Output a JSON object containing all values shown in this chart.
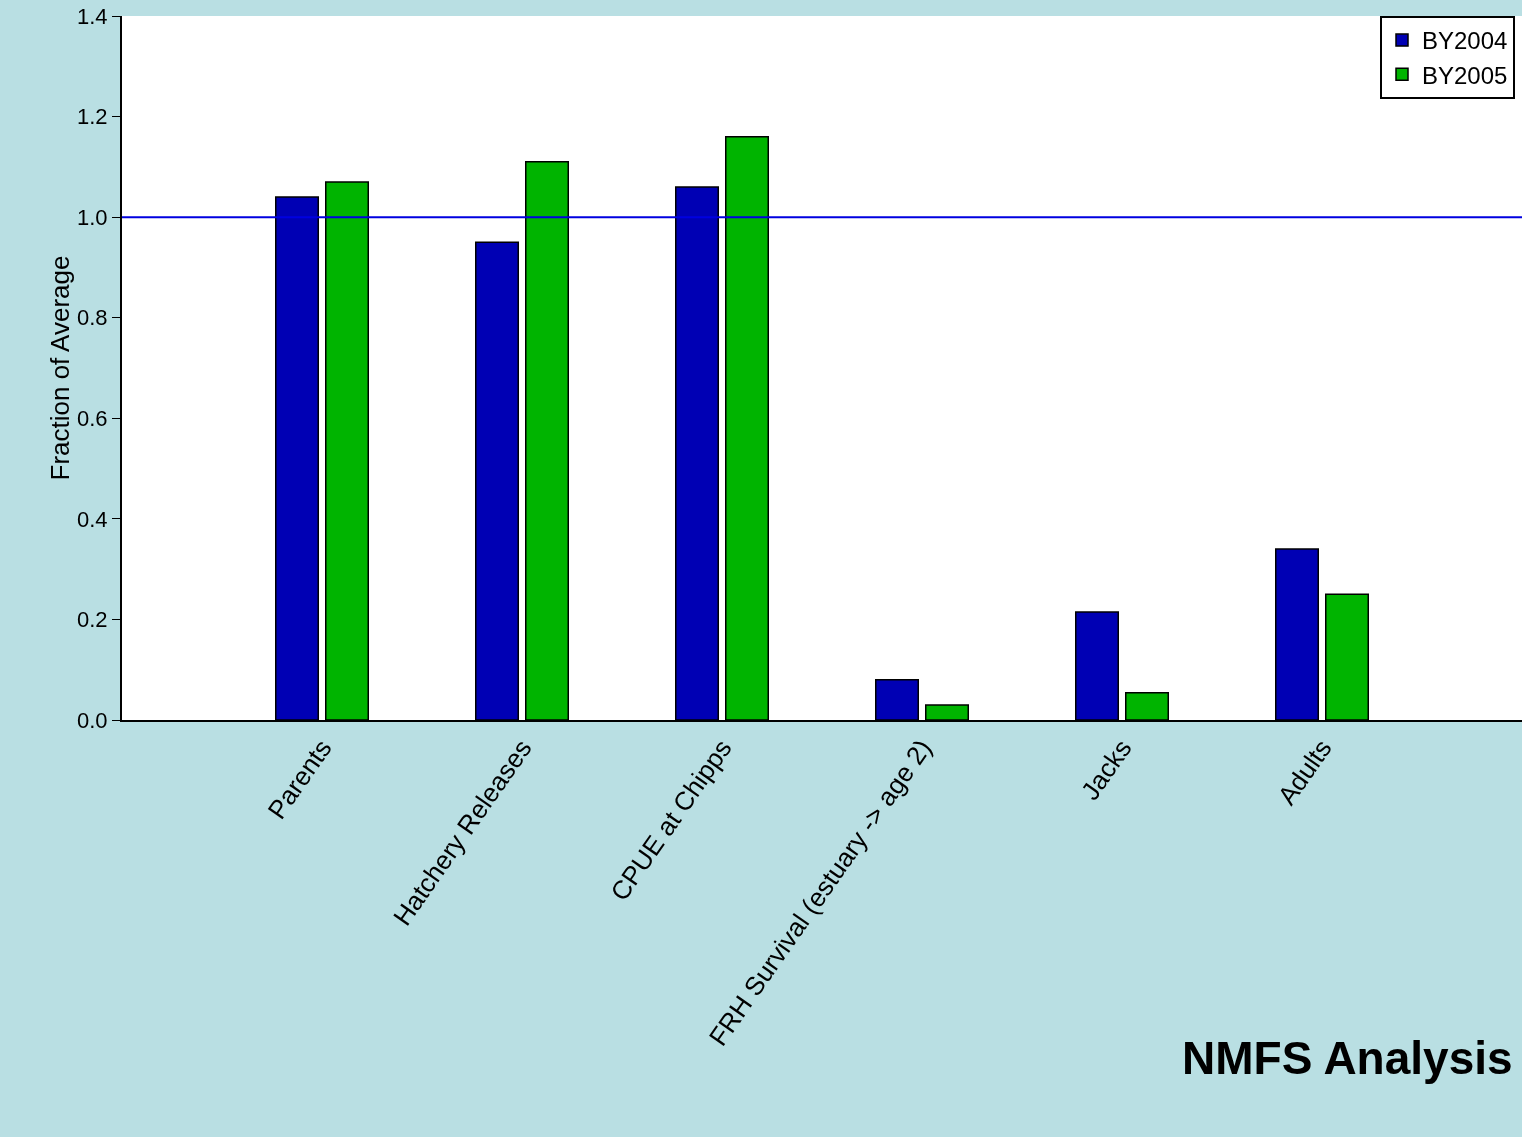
{
  "chart_data": {
    "type": "bar",
    "ylabel": "Fraction of Average",
    "categories": [
      "Parents",
      "Hatchery Releases",
      "CPUE at Chipps",
      "FRH Survival (estuary -> age 2)",
      "Jacks",
      "Adults"
    ],
    "series": [
      {
        "name": "BY2004",
        "color": "#0000b4",
        "values": [
          1.04,
          0.95,
          1.06,
          0.08,
          0.215,
          0.34
        ]
      },
      {
        "name": "BY2005",
        "color": "#00b400",
        "values": [
          1.07,
          1.11,
          1.16,
          0.03,
          0.054,
          0.25
        ]
      }
    ],
    "ylim": [
      0,
      1.4
    ],
    "yticks": [
      {
        "value": 0,
        "label": "0.0"
      },
      {
        "value": 0.2,
        "label": "0.2"
      },
      {
        "value": 0.4,
        "label": "0.4"
      },
      {
        "value": 0.6,
        "label": "0.6"
      },
      {
        "value": 0.8,
        "label": "0.8"
      },
      {
        "value": 1.0,
        "label": "1.0"
      },
      {
        "value": 1.2,
        "label": "1.2"
      },
      {
        "value": 1.4,
        "label": "1.4"
      }
    ],
    "ref_lines": [
      {
        "axis": "y",
        "value": 1.0,
        "color": "#0000e0"
      }
    ],
    "legend": "top right",
    "annotations": [
      "NMFS Analysis"
    ]
  }
}
